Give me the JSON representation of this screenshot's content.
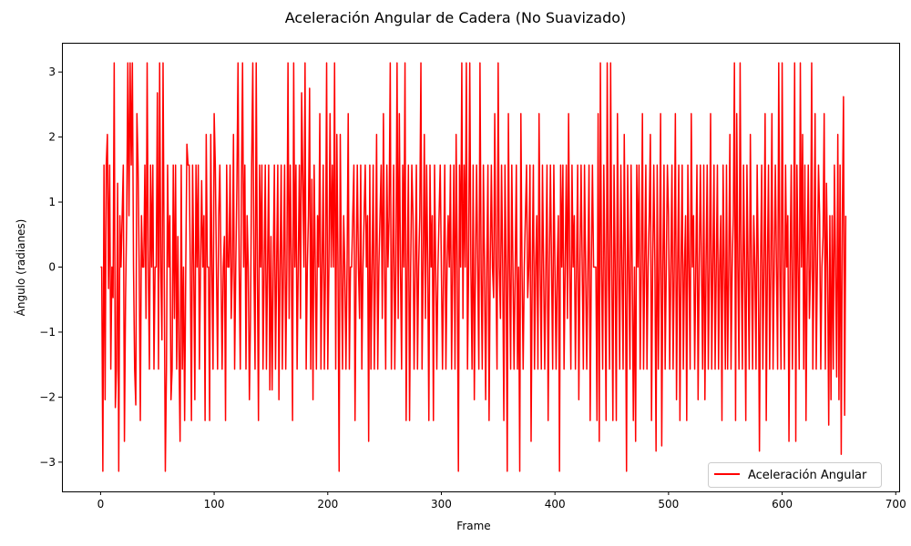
{
  "chart_data": {
    "type": "line",
    "title": "Aceleración Angular de Cadera (No Suavizado)",
    "xlabel": "Frame",
    "ylabel": "Ángulo (radianes)",
    "xlim": [
      -34,
      703
    ],
    "ylim": [
      -3.45,
      3.45
    ],
    "xticks": [
      0,
      100,
      200,
      300,
      400,
      500,
      600,
      700
    ],
    "yticks": [
      -3,
      -2,
      -1,
      0,
      1,
      2,
      3
    ],
    "xtick_labels": [
      "0",
      "100",
      "200",
      "300",
      "400",
      "500",
      "600",
      "700"
    ],
    "ytick_labels": [
      "−3",
      "−2",
      "−1",
      "0",
      "1",
      "2",
      "3"
    ],
    "grid": false,
    "legend_position": "lower-right",
    "colors": {
      "series": "#ff0000"
    },
    "series": [
      {
        "name": "Aceleración Angular",
        "color": "#ff0000",
        "x_start": 0,
        "x_step": 1,
        "values": [
          0,
          0,
          -3.14,
          1.57,
          -2.04,
          1.57,
          2.04,
          -0.33,
          1.57,
          -1.57,
          0,
          -0.47,
          3.14,
          -2.16,
          -1.57,
          1.29,
          -3.14,
          0.79,
          0,
          0.79,
          1.57,
          -2.68,
          -0.47,
          0.79,
          3.14,
          0.79,
          3.14,
          1.57,
          3.14,
          0,
          -1.57,
          -2.12,
          2.36,
          1.57,
          0,
          -2.36,
          0.79,
          0,
          0,
          1.57,
          -0.79,
          3.14,
          0,
          -1.57,
          1.57,
          0,
          1.57,
          -1.57,
          0,
          0,
          2.68,
          -1.57,
          3.14,
          0,
          -1.12,
          3.14,
          0,
          -3.14,
          -1.57,
          1.57,
          0,
          0.79,
          -2.04,
          -1.57,
          1.57,
          -0.79,
          1.57,
          -1.57,
          0.47,
          -1.33,
          -2.68,
          1.57,
          -1.57,
          0,
          -2.36,
          0,
          1.89,
          1.57,
          1.57,
          0,
          -2.36,
          1.57,
          0,
          -2.04,
          1.57,
          0,
          1.57,
          -1.57,
          0,
          1.33,
          0,
          0.79,
          -2.36,
          2.04,
          0,
          0,
          -2.36,
          2.04,
          0,
          -1.57,
          2.36,
          1.57,
          0,
          -1.57,
          0.79,
          1.57,
          0,
          -1.57,
          0,
          0.47,
          -2.36,
          1.57,
          0,
          0,
          1.57,
          -0.79,
          0,
          2.04,
          -1.57,
          0,
          1.25,
          3.14,
          0,
          -1.57,
          1.25,
          3.14,
          0,
          1.57,
          -1.57,
          0.79,
          0,
          -2.04,
          -0.79,
          1.57,
          3.14,
          0,
          -1.57,
          3.14,
          0,
          -2.36,
          1.57,
          0,
          1.57,
          -1.57,
          0,
          1.57,
          -1.57,
          0,
          1.57,
          -1.89,
          0.47,
          -1.89,
          0,
          1.57,
          -1.57,
          0,
          1.57,
          -2.04,
          0,
          1.57,
          -1.57,
          0,
          1.57,
          -1.57,
          0,
          3.14,
          -0.79,
          1.57,
          0,
          -2.36,
          3.14,
          0,
          1.57,
          -1.57,
          0,
          1.57,
          -0.79,
          2.68,
          1.41,
          0,
          3.14,
          -1.57,
          0,
          0.79,
          2.75,
          -1.57,
          1.35,
          -2.04,
          1.57,
          0,
          -1.57,
          0.79,
          0,
          2.36,
          -1.57,
          0,
          1.57,
          -1.57,
          0,
          3.14,
          -1.57,
          0,
          2.36,
          0,
          1.57,
          0,
          3.14,
          -1.57,
          2.04,
          0,
          -3.14,
          2.04,
          0,
          -1.57,
          0.79,
          0,
          -1.57,
          0,
          2.36,
          -1.57,
          0,
          0,
          0.79,
          1.57,
          -2.36,
          0,
          1.57,
          0,
          -0.79,
          1.57,
          -1.57,
          0,
          0.79,
          1.57,
          0,
          0.79,
          -2.68,
          1.57,
          -1.57,
          0,
          1.57,
          -1.57,
          0,
          2.04,
          -1.57,
          0,
          0.79,
          1.57,
          -0.79,
          2.36,
          0,
          -1.57,
          1.57,
          0,
          0.79,
          3.14,
          -1.57,
          0,
          1.57,
          -1.57,
          0,
          3.14,
          -0.79,
          2.36,
          0,
          -1.57,
          1.57,
          0,
          3.14,
          -2.36,
          0,
          1.57,
          -2.36,
          0,
          1.57,
          0.79,
          -1.57,
          0,
          1.57,
          -1.57,
          0,
          0.79,
          3.14,
          -1.57,
          0,
          2.04,
          -0.79,
          1.57,
          0,
          -2.36,
          1.57,
          0,
          0.79,
          -2.36,
          1.57,
          0,
          -1.57,
          0,
          0.79,
          1.57,
          0,
          -1.57,
          0,
          1.57,
          -1.57,
          0,
          0.79,
          0,
          1.57,
          -1.57,
          0,
          1.57,
          -1.57,
          2.04,
          0,
          -3.14,
          1.57,
          0,
          3.14,
          -0.79,
          1.57,
          0,
          3.14,
          -1.57,
          0,
          3.14,
          0,
          -1.57,
          1.57,
          -2.04,
          0,
          1.57,
          0,
          -1.57,
          3.14,
          0,
          -1.57,
          1.57,
          0,
          -2.04,
          0,
          1.57,
          -2.36,
          0,
          1.57,
          0,
          -0.47,
          2.36,
          0,
          -1.57,
          3.14,
          0,
          -0.79,
          1.57,
          0,
          -2.36,
          1.57,
          0,
          -3.14,
          2.36,
          0,
          -1.57,
          1.57,
          0,
          -1.57,
          0,
          1.57,
          -1.57,
          0,
          -3.14,
          2.36,
          0,
          -1.57,
          0,
          0.79,
          1.57,
          -0.47,
          0,
          1.57,
          -2.68,
          0,
          1.57,
          -1.57,
          0,
          0.79,
          -1.57,
          2.36,
          0,
          -1.57,
          1.57,
          0,
          -1.57,
          0,
          1.57,
          -2.36,
          0,
          1.57,
          0,
          -1.57,
          1.57,
          0,
          -1.57,
          0,
          0.79,
          -3.14,
          1.57,
          0,
          1.57,
          -1.57,
          0,
          1.57,
          -0.79,
          2.36,
          0,
          -1.57,
          1.57,
          0,
          0.79,
          -1.57,
          0,
          1.57,
          -2.04,
          0,
          1.57,
          0,
          -1.57,
          1.57,
          0,
          -1.57,
          0,
          1.57,
          -2.36,
          0,
          1.57,
          0,
          0,
          0,
          -2.36,
          2.36,
          -2.68,
          3.14,
          0,
          -1.57,
          1.57,
          0,
          -2.36,
          3.14,
          0,
          -1.57,
          3.14,
          0,
          -2.36,
          1.57,
          0,
          -2.36,
          2.36,
          0,
          -1.57,
          1.57,
          0,
          -1.57,
          2.04,
          0,
          -3.14,
          1.57,
          0,
          -1.57,
          1.57,
          0,
          -2.36,
          0,
          -2.68,
          1.57,
          0,
          1.57,
          -1.57,
          0,
          2.36,
          -1.57,
          0,
          1.57,
          -1.57,
          0,
          0.79,
          2.04,
          -2.36,
          0,
          1.57,
          0,
          -2.83,
          1.57,
          -1.57,
          0,
          2.36,
          -2.75,
          0,
          1.57,
          -1.57,
          0,
          1.57,
          0.79,
          -1.57,
          0,
          1.57,
          -1.57,
          0,
          2.36,
          -2.04,
          0,
          1.57,
          -2.36,
          0,
          1.57,
          -1.57,
          0,
          0.79,
          -2.36,
          1.57,
          0,
          -1.57,
          2.36,
          0,
          0.79,
          -1.57,
          0,
          1.57,
          -2.04,
          0,
          1.57,
          0,
          -1.57,
          1.57,
          -2.04,
          0,
          1.57,
          -1.57,
          0,
          2.36,
          -1.57,
          0,
          1.57,
          -1.57,
          0,
          1.57,
          -1.57,
          0,
          0.79,
          -2.36,
          1.57,
          0,
          -1.57,
          1.57,
          -1.57,
          0,
          2.04,
          -1.57,
          0,
          0.79,
          3.14,
          -2.36,
          2.36,
          0,
          -1.57,
          3.14,
          0,
          -1.57,
          1.57,
          0,
          -2.36,
          1.57,
          0,
          -1.57,
          2.04,
          0,
          -1.57,
          0.79,
          0,
          -1.57,
          1.57,
          0,
          -2.83,
          0,
          1.57,
          -1.57,
          0,
          2.36,
          -2.36,
          0,
          1.57,
          -1.57,
          0,
          2.36,
          -1.57,
          0,
          1.57,
          0,
          -1.57,
          3.14,
          0,
          -1.57,
          3.14,
          0,
          -1.57,
          1.57,
          0,
          0.79,
          -2.68,
          0,
          1.57,
          -1.57,
          0,
          3.14,
          -2.68,
          1.57,
          0,
          -1.57,
          3.14,
          0,
          2.04,
          -1.57,
          1.57,
          -2.36,
          0,
          1.57,
          -0.79,
          0,
          3.14,
          -1.57,
          0,
          2.36,
          -1.57,
          0,
          1.57,
          0.79,
          -1.57,
          0,
          0.47,
          2.36,
          -1.57,
          1.29,
          0,
          -2.43,
          0.79,
          -2.04,
          0.79,
          -1.57,
          1.57,
          0,
          -1.69,
          2.04,
          -2.04,
          1.57,
          -2.88,
          0.79,
          2.62,
          -2.28,
          0.79
        ]
      }
    ]
  }
}
